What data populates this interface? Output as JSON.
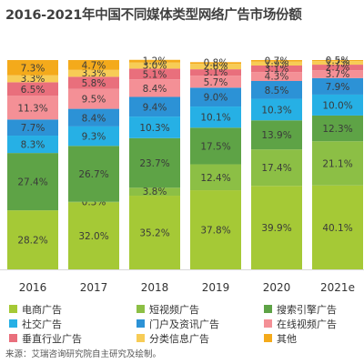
{
  "chart_data": {
    "type": "bar",
    "stacked": true,
    "title": "2016-2021年中国不同媒体类型网络广告市场份额",
    "categories": [
      "2016",
      "2017",
      "2018",
      "2019",
      "2020",
      "2021e"
    ],
    "series": [
      {
        "name": "电商广告",
        "color": "#a5c936",
        "values": [
          28.2,
          32.0,
          35.2,
          37.8,
          39.9,
          40.1
        ]
      },
      {
        "name": "短视频广告",
        "color": "#8cbf45",
        "values": [
          0.0,
          0.3,
          3.8,
          12.4,
          17.4,
          21.1
        ]
      },
      {
        "name": "搜索引擎广告",
        "color": "#5ea346",
        "values": [
          27.4,
          26.7,
          23.7,
          17.5,
          13.9,
          12.3
        ]
      },
      {
        "name": "社交广告",
        "color": "#26b0e5",
        "values": [
          8.3,
          9.3,
          10.3,
          10.1,
          10.3,
          10.0
        ]
      },
      {
        "name": "门户及资讯广告",
        "color": "#2c92d6",
        "values": [
          7.7,
          8.4,
          9.4,
          9.0,
          8.5,
          7.9
        ]
      },
      {
        "name": "在线视频广告",
        "color": "#f49096",
        "values": [
          11.3,
          9.5,
          8.4,
          5.7,
          4.3,
          3.7
        ]
      },
      {
        "name": "垂直行业广告",
        "color": "#e96f7c",
        "values": [
          6.5,
          5.8,
          5.1,
          3.1,
          3.1,
          2.7
        ]
      },
      {
        "name": "分类信息广告",
        "color": "#f7cc56",
        "values": [
          3.3,
          3.3,
          3.0,
          2.6,
          1.9,
          1.7
        ]
      },
      {
        "name": "其他",
        "color": "#f4aa1b",
        "values": [
          7.3,
          4.7,
          1.2,
          0.8,
          0.7,
          0.5
        ]
      }
    ],
    "labels": [
      [
        "28.2%",
        "",
        "27.4%",
        "8.3%",
        "7.7%",
        "11.3%",
        "6.5%",
        "3.3%",
        "7.3%"
      ],
      [
        "32.0%",
        "0.3%",
        "26.7%",
        "9.3%",
        "8.4%",
        "9.5%",
        "5.8%",
        "3.3%",
        "4.7%"
      ],
      [
        "35.2%",
        "3.8%",
        "23.7%",
        "10.3%",
        "9.4%",
        "8.4%",
        "5.1%",
        "3.0%",
        "1.2%"
      ],
      [
        "37.8%",
        "12.4%",
        "17.5%",
        "10.1%",
        "9.0%",
        "5.7%",
        "3.1%",
        "2.6%",
        "0.8%"
      ],
      [
        "39.9%",
        "17.4%",
        "13.9%",
        "10.3%",
        "8.5%",
        "4.3%",
        "3.1%",
        "1.9%",
        "0.7%"
      ],
      [
        "40.1%",
        "21.1%",
        "12.3%",
        "10.0%",
        "7.9%",
        "3.7%",
        "2.7%",
        "1.7%",
        "0.5%"
      ]
    ],
    "ylim": [
      0,
      100
    ],
    "grid": false,
    "legend_position": "bottom"
  },
  "legend": {
    "items": [
      "电商广告",
      "短视频广告",
      "搜索引擎广告",
      "社交广告",
      "门户及资讯广告",
      "在线视频广告",
      "垂直行业广告",
      "分类信息广告",
      "其他"
    ],
    "colors": [
      "#a5c936",
      "#8cbf45",
      "#5ea346",
      "#26b0e5",
      "#2c92d6",
      "#f49096",
      "#e96f7c",
      "#f7cc56",
      "#f4aa1b"
    ]
  },
  "source_note": "来源：艾瑞咨询研究院自主研究及绘制。"
}
